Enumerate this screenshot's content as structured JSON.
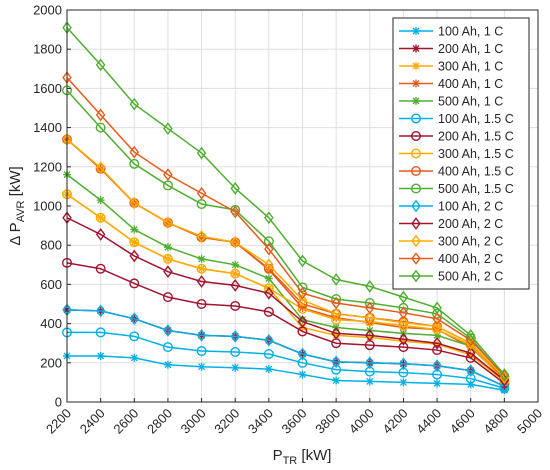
{
  "chart_data": {
    "type": "line",
    "xlabel": "P",
    "xlabel_sub": "TR",
    "xlabel_unit": " [kW]",
    "ylabel": "Δ P",
    "ylabel_sub": "AVR",
    "ylabel_unit": " [kW]",
    "xlim": [
      2200,
      5000
    ],
    "ylim": [
      0,
      2000
    ],
    "x_ticks": [
      2200,
      2400,
      2600,
      2800,
      3000,
      3200,
      3400,
      3600,
      3800,
      4000,
      4200,
      4400,
      4600,
      4800,
      5000
    ],
    "y_ticks": [
      0,
      200,
      400,
      600,
      800,
      1000,
      1200,
      1400,
      1600,
      1800,
      2000
    ],
    "grid": true,
    "legend_position": "top-right",
    "x": [
      2200,
      2400,
      2600,
      2800,
      3000,
      3200,
      3400,
      3600,
      3800,
      4000,
      4200,
      4400,
      4600,
      4800
    ],
    "series": [
      {
        "name": "100 Ah, 1 C",
        "color": "#00b0e8",
        "marker": "asterisk",
        "values": [
          235,
          235,
          225,
          190,
          180,
          175,
          168,
          140,
          110,
          105,
          100,
          95,
          90,
          60
        ]
      },
      {
        "name": "200 Ah, 1 C",
        "color": "#a2142f",
        "marker": "asterisk",
        "values": [
          470,
          465,
          425,
          365,
          340,
          335,
          315,
          245,
          205,
          200,
          195,
          185,
          160,
          80
        ]
      },
      {
        "name": "300 Ah, 1 C",
        "color": "#ffaa00",
        "marker": "asterisk",
        "values": [
          1060,
          940,
          815,
          730,
          680,
          655,
          580,
          380,
          340,
          330,
          310,
          295,
          240,
          105
        ]
      },
      {
        "name": "400 Ah, 1 C",
        "color": "#e65a1a",
        "marker": "asterisk",
        "values": [
          1340,
          1190,
          1015,
          915,
          840,
          815,
          675,
          480,
          430,
          405,
          380,
          370,
          280,
          115
        ]
      },
      {
        "name": "500 Ah, 1 C",
        "color": "#4fae30",
        "marker": "asterisk",
        "values": [
          1160,
          1030,
          880,
          790,
          730,
          700,
          630,
          420,
          380,
          365,
          350,
          340,
          285,
          110
        ]
      },
      {
        "name": "100 Ah, 1.5 C",
        "color": "#00b0e8",
        "marker": "circle",
        "values": [
          355,
          355,
          335,
          280,
          260,
          255,
          245,
          200,
          165,
          155,
          150,
          140,
          120,
          70
        ]
      },
      {
        "name": "200 Ah, 1.5 C",
        "color": "#a2142f",
        "marker": "circle",
        "values": [
          710,
          680,
          605,
          535,
          500,
          490,
          460,
          360,
          300,
          290,
          280,
          265,
          225,
          95
        ]
      },
      {
        "name": "300 Ah, 1.5 C",
        "color": "#ffaa00",
        "marker": "circle",
        "values": [
          1060,
          940,
          815,
          730,
          680,
          655,
          580,
          475,
          420,
          410,
          390,
          370,
          290,
          105
        ]
      },
      {
        "name": "400 Ah, 1.5 C",
        "color": "#e65a1a",
        "marker": "circle",
        "values": [
          1340,
          1190,
          1015,
          915,
          840,
          815,
          680,
          500,
          450,
          430,
          410,
          385,
          300,
          120
        ]
      },
      {
        "name": "500 Ah, 1.5 C",
        "color": "#4fae30",
        "marker": "circle",
        "values": [
          1590,
          1400,
          1215,
          1105,
          1010,
          980,
          820,
          585,
          525,
          505,
          480,
          450,
          325,
          130
        ]
      },
      {
        "name": "100 Ah, 2 C",
        "color": "#00b0e8",
        "marker": "diamond",
        "values": [
          470,
          465,
          425,
          365,
          340,
          335,
          315,
          245,
          205,
          200,
          195,
          185,
          160,
          80
        ]
      },
      {
        "name": "200 Ah, 2 C",
        "color": "#a2142f",
        "marker": "diamond",
        "values": [
          940,
          855,
          745,
          665,
          615,
          595,
          555,
          410,
          350,
          340,
          320,
          300,
          250,
          110
        ]
      },
      {
        "name": "300 Ah, 2 C",
        "color": "#ffaa00",
        "marker": "diamond",
        "values": [
          1340,
          1195,
          1015,
          915,
          845,
          815,
          700,
          520,
          450,
          430,
          405,
          385,
          300,
          125
        ]
      },
      {
        "name": "400 Ah, 2 C",
        "color": "#e65a1a",
        "marker": "diamond",
        "values": [
          1655,
          1465,
          1275,
          1160,
          1065,
          970,
          780,
          555,
          505,
          480,
          455,
          425,
          315,
          135
        ]
      },
      {
        "name": "500 Ah, 2 C",
        "color": "#4fae30",
        "marker": "diamond",
        "values": [
          1910,
          1720,
          1520,
          1395,
          1270,
          1090,
          940,
          720,
          625,
          590,
          535,
          480,
          340,
          140
        ]
      }
    ]
  }
}
